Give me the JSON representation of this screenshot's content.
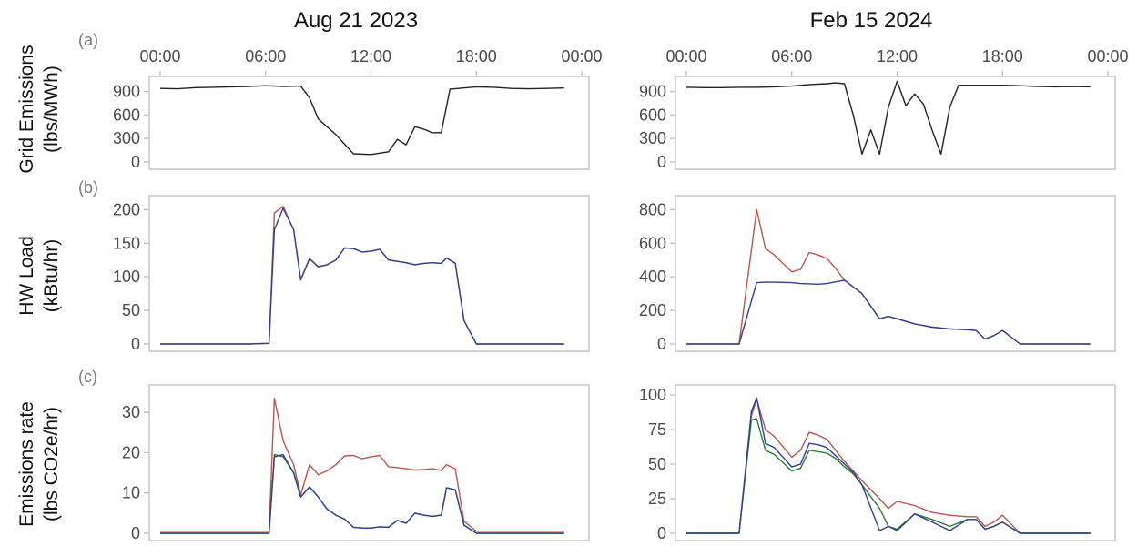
{
  "colors": {
    "single": "#222222",
    "red": "#b5574e",
    "blue": "#2f3f8f",
    "green": "#2f7a3a",
    "frame": "#bdbdbd"
  },
  "chart_data": [
    {
      "id": "a-aug",
      "type": "line",
      "title": "Aug 21 2023",
      "panel_label": "(a)",
      "ylabel": [
        "Grid Emissions",
        "(lbs/MWh)"
      ],
      "ylim": [
        0,
        1000
      ],
      "yticks": [
        0,
        300,
        600,
        900
      ],
      "xlim": [
        0,
        24
      ],
      "xtick_values": [
        0,
        6,
        12,
        18,
        24
      ],
      "xtick_labels": [
        "00:00",
        "06:00",
        "12:00",
        "18:00",
        "00:00"
      ],
      "series": [
        {
          "color": "single",
          "x": [
            0,
            1,
            2,
            3,
            4,
            5,
            6,
            7,
            8,
            8.5,
            9,
            10,
            11,
            12,
            13,
            13.5,
            14,
            14.5,
            15,
            15.5,
            16,
            16.5,
            17,
            18,
            19,
            20,
            21,
            22,
            23
          ],
          "y": [
            940,
            935,
            950,
            955,
            960,
            965,
            975,
            965,
            970,
            820,
            550,
            350,
            105,
            95,
            130,
            290,
            220,
            450,
            420,
            375,
            375,
            930,
            940,
            960,
            955,
            940,
            935,
            940,
            945
          ]
        }
      ]
    },
    {
      "id": "a-feb",
      "type": "line",
      "title": "Feb 15 2024",
      "panel_label": "",
      "ylabel": [],
      "ylim": [
        0,
        1000
      ],
      "yticks": [
        0,
        300,
        600,
        900
      ],
      "xlim": [
        0,
        24
      ],
      "xtick_values": [
        0,
        6,
        12,
        18,
        24
      ],
      "xtick_labels": [
        "00:00",
        "06:00",
        "12:00",
        "18:00",
        "00:00"
      ],
      "series": [
        {
          "color": "single",
          "x": [
            0,
            1,
            2,
            3,
            4,
            5,
            6,
            7,
            8,
            8.5,
            9,
            9.5,
            10,
            10.5,
            11,
            11.5,
            12,
            12.5,
            13,
            13.5,
            14,
            14.5,
            15,
            15.5,
            16,
            17,
            18,
            19,
            20,
            21,
            22,
            23
          ],
          "y": [
            955,
            950,
            950,
            955,
            955,
            960,
            970,
            990,
            1000,
            1010,
            1000,
            600,
            100,
            410,
            100,
            700,
            1030,
            720,
            870,
            740,
            400,
            100,
            700,
            980,
            980,
            980,
            980,
            975,
            965,
            960,
            965,
            960
          ]
        }
      ]
    },
    {
      "id": "b-aug",
      "type": "line",
      "title": "",
      "panel_label": "(b)",
      "ylabel": [
        "HW Load",
        "(kBtu/hr)"
      ],
      "ylim": [
        0,
        210
      ],
      "yticks": [
        0,
        50,
        100,
        150,
        200
      ],
      "xlim": [
        0,
        24
      ],
      "xtick_values": [
        0,
        6,
        12,
        18,
        24
      ],
      "xtick_labels": [],
      "series": [
        {
          "color": "red",
          "x": [
            0,
            1,
            2,
            3,
            4,
            5,
            6.2,
            6.5,
            7,
            7.6,
            8,
            8.5,
            9,
            9.5,
            10,
            10.5,
            11,
            11.5,
            12,
            12.5,
            13,
            13.5,
            14,
            14.5,
            15,
            15.5,
            16,
            16.3,
            16.8,
            17.3,
            18,
            19,
            20,
            21,
            22,
            23
          ],
          "y": [
            0,
            0,
            0,
            0,
            0,
            0,
            1,
            195,
            205,
            170,
            95,
            127,
            115,
            118,
            125,
            143,
            142,
            137,
            138,
            141,
            125,
            123,
            121,
            118,
            120,
            121,
            120,
            128,
            120,
            35,
            0,
            0,
            0,
            0,
            0,
            0
          ]
        },
        {
          "color": "blue",
          "x": [
            0,
            1,
            2,
            3,
            4,
            5,
            6.2,
            6.5,
            7,
            7.6,
            8,
            8.5,
            9,
            9.5,
            10,
            10.5,
            11,
            11.5,
            12,
            12.5,
            13,
            13.5,
            14,
            14.5,
            15,
            15.5,
            16,
            16.3,
            16.8,
            17.3,
            18,
            19,
            20,
            21,
            22,
            23
          ],
          "y": [
            0,
            0,
            0,
            0,
            0,
            0,
            1,
            170,
            202,
            170,
            96,
            127,
            115,
            118,
            125,
            143,
            142,
            137,
            138,
            141,
            125,
            123,
            121,
            118,
            120,
            121,
            120,
            128,
            120,
            35,
            0,
            0,
            0,
            0,
            0,
            0
          ]
        }
      ]
    },
    {
      "id": "b-feb",
      "type": "line",
      "title": "",
      "panel_label": "",
      "ylabel": [],
      "ylim": [
        0,
        840
      ],
      "yticks": [
        0,
        200,
        400,
        600,
        800
      ],
      "xlim": [
        0,
        24
      ],
      "xtick_values": [
        0,
        6,
        12,
        18,
        24
      ],
      "xtick_labels": [],
      "series": [
        {
          "color": "red",
          "x": [
            0,
            1,
            2,
            3,
            4,
            4.5,
            5,
            6,
            6.5,
            7,
            7.5,
            8,
            8.5,
            9,
            9.5,
            10,
            11,
            11.5,
            12,
            13,
            14,
            15,
            16,
            16.5,
            17,
            17.5,
            18,
            19,
            20,
            21,
            22,
            23
          ],
          "y": [
            0,
            0,
            0,
            0,
            800,
            570,
            530,
            430,
            445,
            545,
            530,
            510,
            450,
            380,
            340,
            300,
            150,
            165,
            150,
            120,
            100,
            90,
            85,
            80,
            30,
            50,
            80,
            0,
            0,
            0,
            0,
            0
          ]
        },
        {
          "color": "blue",
          "x": [
            0,
            1,
            2,
            3,
            4,
            4.5,
            5,
            6,
            6.5,
            7,
            7.5,
            8,
            8.5,
            9,
            9.5,
            10,
            11,
            11.5,
            12,
            13,
            14,
            15,
            16,
            16.5,
            17,
            17.5,
            18,
            19,
            20,
            21,
            22,
            23
          ],
          "y": [
            0,
            0,
            0,
            0,
            365,
            368,
            368,
            365,
            360,
            358,
            356,
            360,
            370,
            380,
            340,
            300,
            150,
            165,
            150,
            120,
            100,
            90,
            85,
            80,
            30,
            50,
            80,
            0,
            0,
            0,
            0,
            0
          ]
        }
      ]
    },
    {
      "id": "c-aug",
      "type": "line",
      "title": "",
      "panel_label": "(c)",
      "ylabel": [
        "Emissions rate",
        "(lbs CO2e/hr)"
      ],
      "ylim": [
        0,
        35
      ],
      "yticks": [
        0,
        10,
        20,
        30
      ],
      "xlim": [
        0,
        24
      ],
      "xtick_values": [
        0,
        6,
        12,
        18,
        24
      ],
      "xtick_labels": [],
      "series": [
        {
          "color": "red",
          "x": [
            0,
            1,
            2,
            3,
            4,
            5,
            6.2,
            6.5,
            7,
            7.6,
            8,
            8.5,
            9,
            9.5,
            10,
            10.5,
            11,
            11.5,
            12,
            12.5,
            13,
            13.5,
            14,
            14.5,
            15,
            15.5,
            16,
            16.3,
            16.8,
            17.3,
            18,
            19,
            20,
            21,
            22,
            23
          ],
          "y": [
            0.5,
            0.5,
            0.5,
            0.5,
            0.5,
            0.5,
            0.5,
            33.5,
            23,
            17,
            9.5,
            17,
            14.5,
            15.5,
            17,
            19.2,
            19.3,
            18.5,
            19,
            19.3,
            16.5,
            16.3,
            16,
            15.7,
            15.8,
            16,
            15.6,
            17,
            16,
            3,
            0.5,
            0.5,
            0.5,
            0.5,
            0.5,
            0.5
          ]
        },
        {
          "color": "green",
          "x": [
            0,
            1,
            2,
            3,
            4,
            5,
            6.2,
            6.5,
            7,
            7.6,
            8,
            8.5,
            9,
            9.5,
            10,
            10.5,
            11,
            11.5,
            12,
            12.5,
            13,
            13.5,
            14,
            14.5,
            15,
            15.5,
            16,
            16.3,
            16.8,
            17.3,
            18,
            19,
            20,
            21,
            22,
            23
          ],
          "y": [
            0,
            0,
            0,
            0,
            0,
            0,
            0,
            19.5,
            19,
            15,
            9,
            11.5,
            9,
            6,
            4.5,
            3.5,
            1.5,
            1.3,
            1.3,
            1.6,
            1.5,
            3.2,
            2.5,
            5,
            4.5,
            4.2,
            4.5,
            11.3,
            10.8,
            2,
            0,
            0,
            0,
            0,
            0,
            0
          ]
        },
        {
          "color": "blue",
          "x": [
            0,
            1,
            2,
            3,
            4,
            5,
            6.2,
            6.5,
            7,
            7.6,
            8,
            8.5,
            9,
            9.5,
            10,
            10.5,
            11,
            11.5,
            12,
            12.5,
            13,
            13.5,
            14,
            14.5,
            15,
            15.5,
            16,
            16.3,
            16.8,
            17.3,
            18,
            19,
            20,
            21,
            22,
            23
          ],
          "y": [
            0,
            0,
            0,
            0,
            0,
            0,
            0,
            19,
            19.5,
            15,
            9,
            11.5,
            9,
            6,
            4.5,
            3.5,
            1.5,
            1.3,
            1.3,
            1.6,
            1.5,
            3.2,
            2.5,
            5,
            4.5,
            4.2,
            4.5,
            11.3,
            10.8,
            2,
            0,
            0,
            0,
            0,
            0,
            0
          ]
        }
      ]
    },
    {
      "id": "c-feb",
      "type": "line",
      "title": "",
      "panel_label": "",
      "ylabel": [],
      "ylim": [
        0,
        102
      ],
      "yticks": [
        0,
        25,
        50,
        75,
        100
      ],
      "xlim": [
        0,
        24
      ],
      "xtick_values": [
        0,
        6,
        12,
        18,
        24
      ],
      "xtick_labels": [],
      "series": [
        {
          "color": "red",
          "x": [
            0,
            1,
            2,
            3,
            3.7,
            4,
            4.5,
            5,
            6,
            6.5,
            7,
            7.5,
            8,
            8.5,
            9,
            9.5,
            10,
            11,
            11.5,
            12,
            13,
            14,
            15,
            16,
            16.5,
            17,
            17.5,
            18,
            19,
            20,
            21,
            22,
            23
          ],
          "y": [
            0,
            0,
            0,
            0,
            85,
            97,
            75,
            70,
            55,
            60,
            73,
            71,
            68,
            60,
            52,
            45,
            38,
            25,
            18,
            23,
            20,
            15,
            13,
            12,
            12,
            5,
            8,
            13,
            0,
            0,
            0,
            0,
            0
          ]
        },
        {
          "color": "green",
          "x": [
            0,
            1,
            2,
            3,
            3.7,
            4,
            4.5,
            5,
            6,
            6.5,
            7,
            7.5,
            8,
            8.5,
            9,
            9.5,
            10,
            11,
            11.5,
            12,
            13,
            14,
            15,
            16,
            16.5,
            17,
            17.5,
            18,
            19,
            20,
            21,
            22,
            23
          ],
          "y": [
            0,
            0,
            0,
            0,
            82,
            83,
            60,
            57,
            45,
            47,
            60,
            59,
            58,
            54,
            48,
            43,
            35,
            18,
            5,
            3,
            14,
            10,
            5,
            10,
            10,
            3,
            5,
            8,
            0,
            0,
            0,
            0,
            0
          ]
        },
        {
          "color": "blue",
          "x": [
            0,
            1,
            2,
            3,
            3.7,
            4,
            4.5,
            5,
            6,
            6.5,
            7,
            7.5,
            8,
            8.5,
            9,
            9.5,
            10,
            11,
            11.5,
            12,
            13,
            14,
            15,
            16,
            16.5,
            17,
            17.5,
            18,
            19,
            20,
            21,
            22,
            23
          ],
          "y": [
            0,
            0,
            0,
            0,
            88,
            98,
            65,
            62,
            48,
            50,
            65,
            64,
            62,
            56,
            50,
            44,
            35,
            2,
            5,
            2,
            14,
            8,
            2,
            10,
            10,
            3,
            5,
            8,
            0,
            0,
            0,
            0,
            0
          ]
        }
      ]
    }
  ]
}
